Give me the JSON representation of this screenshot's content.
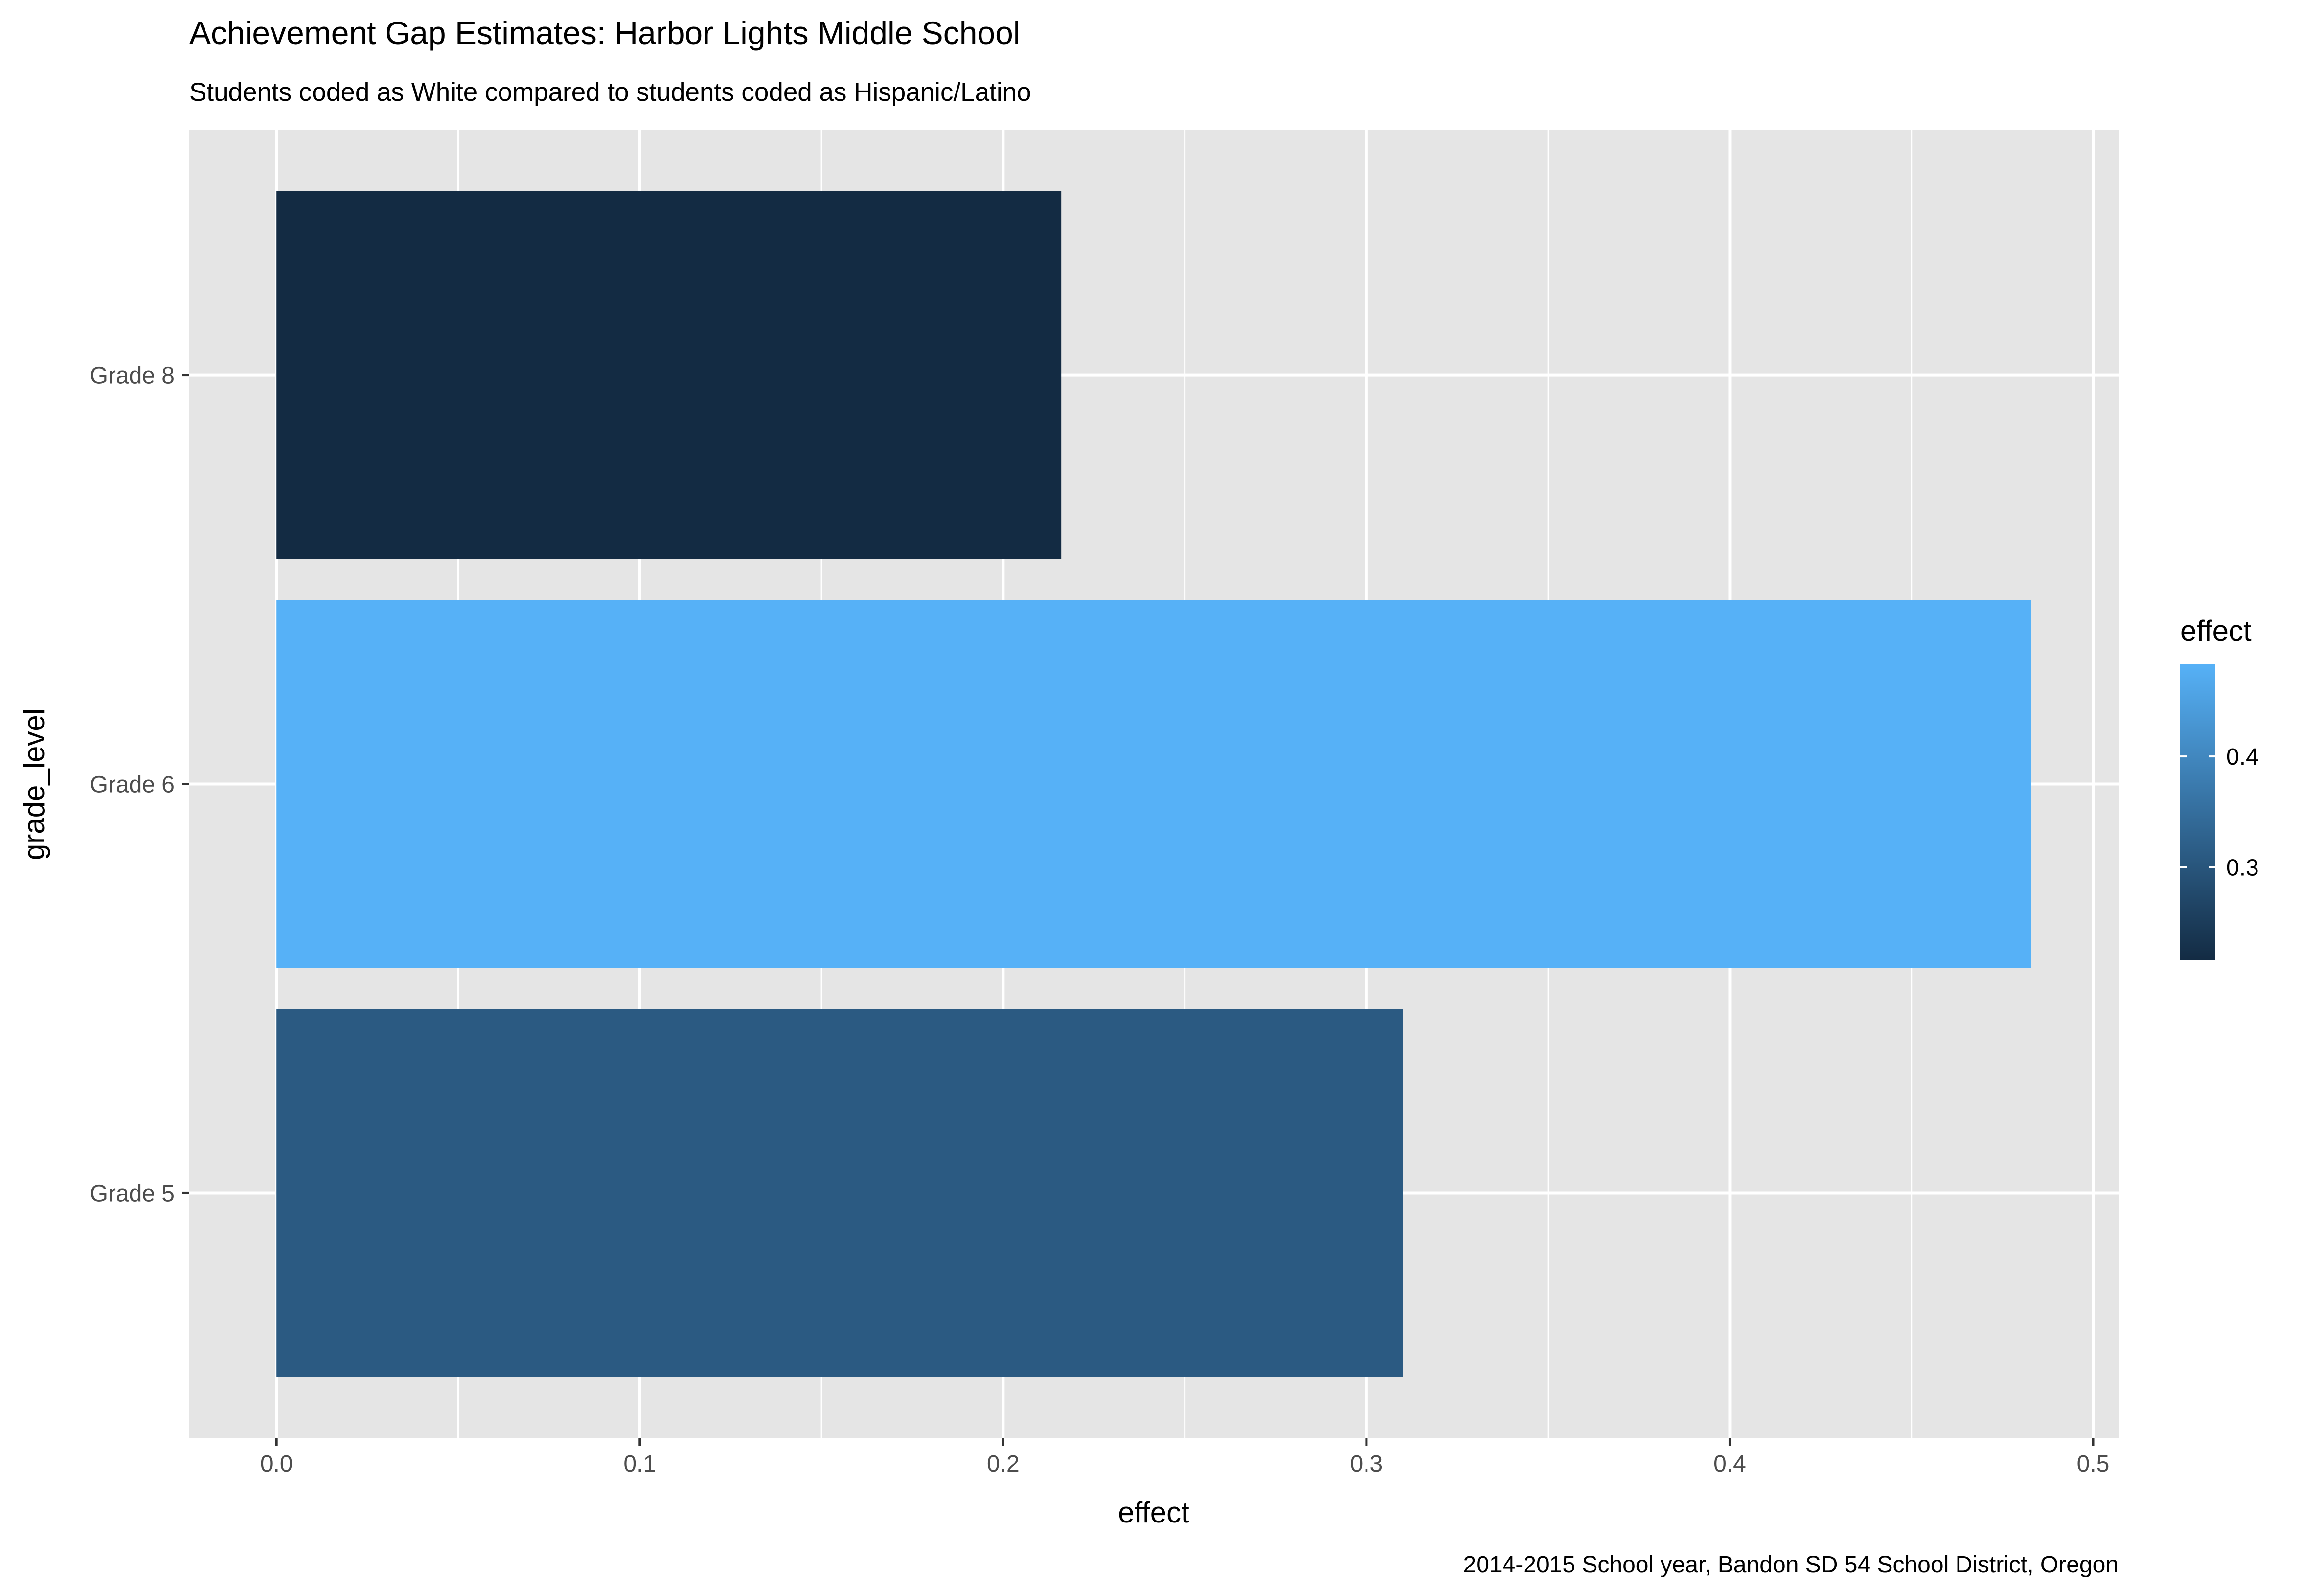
{
  "chart_data": {
    "type": "bar",
    "orientation": "horizontal",
    "title": "Achievement Gap Estimates: Harbor Lights Middle School",
    "subtitle": "Students coded as White compared to students coded as Hispanic/Latino",
    "caption": "2014-2015 School year, Bandon SD 54 School District, Oregon",
    "xlabel": "effect",
    "ylabel": "grade_level",
    "categories": [
      "Grade 5",
      "Grade 6",
      "Grade 8"
    ],
    "values": [
      0.31,
      0.483,
      0.216
    ],
    "xlim": [
      -0.024,
      0.507
    ],
    "x_ticks": [
      0.0,
      0.1,
      0.2,
      0.3,
      0.4,
      0.5
    ],
    "x_tick_labels": [
      "0.0",
      "0.1",
      "0.2",
      "0.3",
      "0.4",
      "0.5"
    ],
    "grid": true,
    "legend": {
      "title": "effect",
      "position": "right",
      "type": "colorbar",
      "range": [
        0.216,
        0.483
      ],
      "breaks": [
        0.3,
        0.4
      ],
      "break_labels": [
        "0.3",
        "0.4"
      ],
      "low_color": "#132B43",
      "high_color": "#56B1F7"
    },
    "colors": {
      "panel_background": "#e5e5e5",
      "grid_line": "#ffffff",
      "tick_text": "#4d4d4d"
    }
  }
}
